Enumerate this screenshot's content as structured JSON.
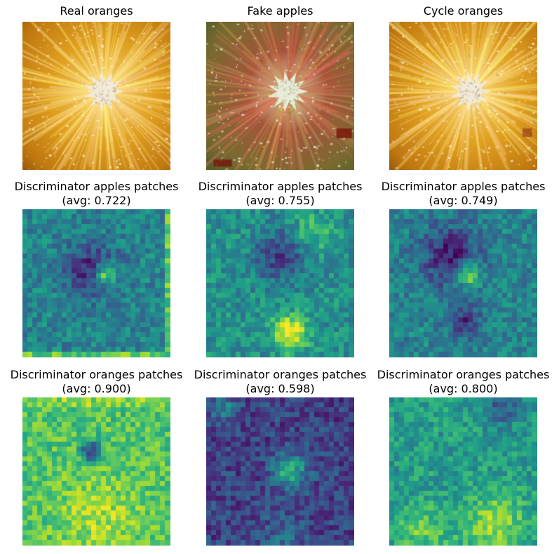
{
  "rows": [
    {
      "panels": [
        {
          "title": "Real oranges",
          "subtitle": "",
          "kind": "photo",
          "variant": "real-orange"
        },
        {
          "title": "Fake apples",
          "subtitle": "",
          "kind": "photo",
          "variant": "fake-apple"
        },
        {
          "title": "Cycle oranges",
          "subtitle": "",
          "kind": "photo",
          "variant": "cycle-orange"
        }
      ]
    },
    {
      "panels": [
        {
          "title": "Discriminator apples patches",
          "subtitle": "(avg: 0.722)",
          "kind": "heatmap",
          "avg": 0.722,
          "variant": "da-real"
        },
        {
          "title": "Discriminator apples patches",
          "subtitle": "(avg: 0.755)",
          "kind": "heatmap",
          "avg": 0.755,
          "variant": "da-fake"
        },
        {
          "title": "Discriminator apples patches",
          "subtitle": "(avg: 0.749)",
          "kind": "heatmap",
          "avg": 0.749,
          "variant": "da-cycle"
        }
      ]
    },
    {
      "panels": [
        {
          "title": "Discriminator oranges patches",
          "subtitle": "(avg: 0.900)",
          "kind": "heatmap",
          "avg": 0.9,
          "variant": "do-real"
        },
        {
          "title": "Discriminator oranges patches",
          "subtitle": "(avg: 0.598)",
          "kind": "heatmap",
          "avg": 0.598,
          "variant": "do-fake"
        },
        {
          "title": "Discriminator oranges patches",
          "subtitle": "(avg: 0.800)",
          "kind": "heatmap",
          "avg": 0.8,
          "variant": "do-cycle"
        }
      ]
    }
  ],
  "colormap": "viridis"
}
